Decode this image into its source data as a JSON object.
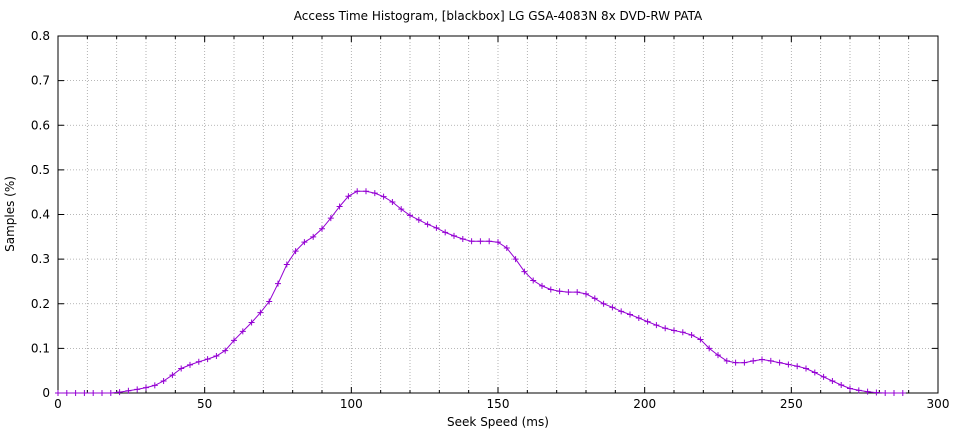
{
  "chart_data": {
    "type": "line",
    "title": "Access Time Histogram, [blackbox] LG GSA-4083N 8x DVD-RW PATA",
    "xlabel": "Seek Speed (ms)",
    "ylabel": "Samples (%)",
    "xlim": [
      0,
      300
    ],
    "ylim": [
      0,
      0.8
    ],
    "x_ticks": [
      0,
      50,
      100,
      150,
      200,
      250,
      300
    ],
    "y_ticks": [
      0,
      0.1,
      0.2,
      0.3,
      0.4,
      0.5,
      0.6,
      0.7,
      0.8
    ],
    "x_tick_labels": [
      "0",
      "50",
      "100",
      "150",
      "200",
      "250",
      "300"
    ],
    "y_tick_labels": [
      "0",
      "0.1",
      "0.2",
      "0.3",
      "0.4",
      "0.5",
      "0.6",
      "0.7",
      "0.8"
    ],
    "grid": true,
    "line_color": "#9400d3",
    "marker": "plus",
    "series": [
      {
        "x": [
          0,
          3,
          6,
          9,
          12,
          15,
          18,
          21,
          24,
          27,
          30,
          33,
          36,
          39,
          42,
          45,
          48,
          51,
          54,
          57,
          60,
          63,
          66,
          69,
          72,
          75,
          78,
          81,
          84,
          87,
          90,
          93,
          96,
          99,
          102,
          105,
          108,
          111,
          114,
          117,
          120,
          123,
          126,
          129,
          132,
          135,
          138,
          141,
          144,
          147,
          150,
          153,
          156,
          159,
          162,
          165,
          168,
          171,
          174,
          177,
          180,
          183,
          186,
          189,
          192,
          195,
          198,
          201,
          204,
          207,
          210,
          213,
          216,
          219,
          222,
          225,
          228,
          231,
          234,
          237,
          240,
          243,
          246,
          249,
          252,
          255,
          258,
          261,
          264,
          267,
          270,
          273,
          276,
          279,
          282,
          285,
          288
        ],
        "y": [
          0.0,
          0.0,
          0.0,
          0.0,
          0.0,
          0.0,
          0.0,
          0.002,
          0.005,
          0.008,
          0.012,
          0.017,
          0.027,
          0.04,
          0.055,
          0.063,
          0.07,
          0.076,
          0.083,
          0.095,
          0.118,
          0.138,
          0.158,
          0.18,
          0.205,
          0.245,
          0.288,
          0.318,
          0.338,
          0.35,
          0.368,
          0.392,
          0.418,
          0.441,
          0.452,
          0.452,
          0.448,
          0.44,
          0.428,
          0.412,
          0.398,
          0.388,
          0.378,
          0.37,
          0.36,
          0.352,
          0.345,
          0.34,
          0.34,
          0.34,
          0.338,
          0.325,
          0.3,
          0.272,
          0.252,
          0.24,
          0.232,
          0.228,
          0.226,
          0.226,
          0.222,
          0.212,
          0.2,
          0.192,
          0.183,
          0.176,
          0.168,
          0.16,
          0.152,
          0.145,
          0.14,
          0.136,
          0.13,
          0.12,
          0.1,
          0.085,
          0.072,
          0.068,
          0.068,
          0.072,
          0.075,
          0.072,
          0.068,
          0.064,
          0.06,
          0.055,
          0.046,
          0.036,
          0.027,
          0.018,
          0.01,
          0.006,
          0.003,
          0.001,
          0.0,
          0.0,
          0.0
        ]
      }
    ]
  }
}
